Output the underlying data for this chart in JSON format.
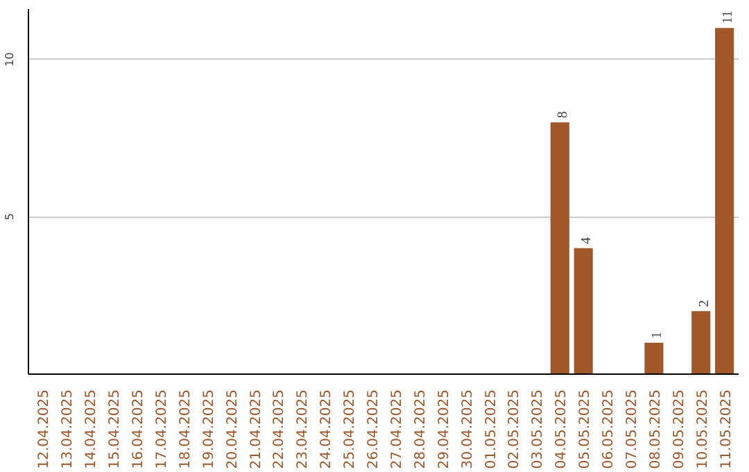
{
  "chart_data": {
    "type": "bar",
    "categories": [
      "12.04.2025",
      "13.04.2025",
      "14.04.2025",
      "15.04.2025",
      "16.04.2025",
      "17.04.2025",
      "18.04.2025",
      "19.04.2025",
      "20.04.2025",
      "21.04.2025",
      "22.04.2025",
      "23.04.2025",
      "24.04.2025",
      "25.04.2025",
      "26.04.2025",
      "27.04.2025",
      "28.04.2025",
      "29.04.2025",
      "30.04.2025",
      "01.05.2025",
      "02.05.2025",
      "03.05.2025",
      "04.05.2025",
      "05.05.2025",
      "06.05.2025",
      "07.05.2025",
      "08.05.2025",
      "09.05.2025",
      "10.05.2025",
      "11.05.2025"
    ],
    "values": [
      0,
      0,
      0,
      0,
      0,
      0,
      0,
      0,
      0,
      0,
      0,
      0,
      0,
      0,
      0,
      0,
      0,
      0,
      0,
      0,
      0,
      0,
      8,
      4,
      0,
      0,
      1,
      0,
      2,
      11
    ],
    "value_labels": [
      null,
      null,
      null,
      null,
      null,
      null,
      null,
      null,
      null,
      null,
      null,
      null,
      null,
      null,
      null,
      null,
      null,
      null,
      null,
      null,
      null,
      null,
      "8",
      "4",
      null,
      null,
      "1",
      null,
      "2",
      "11"
    ],
    "color": "#a0572a",
    "ylim": [
      0,
      11.6
    ],
    "yticks": [
      5,
      10
    ],
    "grid": "y"
  }
}
